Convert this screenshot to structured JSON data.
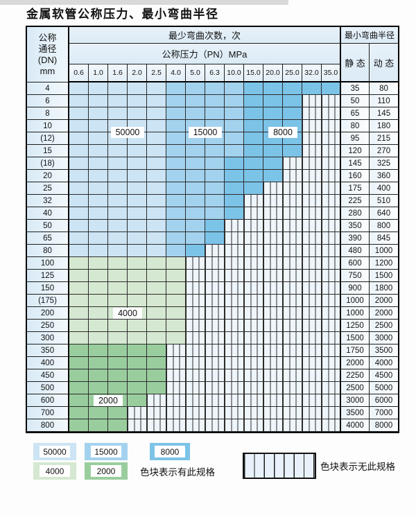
{
  "title": "金属软管公称压力、最小弯曲半径",
  "header": {
    "dn_lines": [
      "公称",
      "通径",
      "(DN)",
      "mm"
    ],
    "bend_cycles": "最少弯曲次数，次",
    "pressure_title": "公称压力（PN）MPa",
    "pressures": [
      "0.6",
      "1.0",
      "1.6",
      "2.0",
      "2.5",
      "4.0",
      "5.0",
      "6.3",
      "10.0",
      "15.0",
      "20.0",
      "25.0",
      "32.0",
      "35.0"
    ],
    "min_radius": "最小弯曲半径",
    "static_label": "静 态",
    "dynamic_label": "动 态"
  },
  "colors": {
    "L": "#cce4f4",
    "M": "#a3d2ee",
    "D": "#7cc3e8",
    "G": "#d5e8d1",
    "E": "#9acd9e",
    "hatch_bg": "#eef5fb"
  },
  "zone_labels": [
    {
      "text": "50000",
      "col_start": 2,
      "col_span": 2,
      "row_start": 3,
      "row_span": 2
    },
    {
      "text": "15000",
      "col_start": 6,
      "col_span": 2,
      "row_start": 3,
      "row_span": 2
    },
    {
      "text": "8000",
      "col_start": 10,
      "col_span": 2,
      "row_start": 3,
      "row_span": 2
    },
    {
      "text": "4000",
      "col_start": 2,
      "col_span": 2,
      "row_start": 18,
      "row_span": 1
    },
    {
      "text": "2000",
      "col_start": 1,
      "col_span": 2,
      "row_start": 25,
      "row_span": 1
    }
  ],
  "rows": [
    {
      "dn": "4",
      "cells": "LLLLLMMMMDDDDD",
      "static": "35",
      "dynamic": "80"
    },
    {
      "dn": "6",
      "cells": "LLLLLMMMMDDDXX",
      "static": "50",
      "dynamic": "110"
    },
    {
      "dn": "8",
      "cells": "LLLLLMMMMDDDXX",
      "static": "65",
      "dynamic": "145"
    },
    {
      "dn": "10",
      "cells": "LLLLLMMMMDDDXX",
      "static": "80",
      "dynamic": "180"
    },
    {
      "dn": "(12)",
      "cells": "LLLLLMMMMDDDXX",
      "static": "95",
      "dynamic": "215"
    },
    {
      "dn": "15",
      "cells": "LLLLLMMMMDDDXX",
      "static": "120",
      "dynamic": "270"
    },
    {
      "dn": "(18)",
      "cells": "LLLLLMMMDDDXXX",
      "static": "145",
      "dynamic": "325"
    },
    {
      "dn": "20",
      "cells": "LLLLLMMMDDDXXX",
      "static": "160",
      "dynamic": "360"
    },
    {
      "dn": "25",
      "cells": "LLLLLMMMDDXXXX",
      "static": "175",
      "dynamic": "400"
    },
    {
      "dn": "32",
      "cells": "LLLLLMMMDXXXXX",
      "static": "225",
      "dynamic": "510"
    },
    {
      "dn": "40",
      "cells": "LLLLLMMMDXXXXX",
      "static": "280",
      "dynamic": "640"
    },
    {
      "dn": "50",
      "cells": "LLLLLMMDXXXXXX",
      "static": "350",
      "dynamic": "800"
    },
    {
      "dn": "65",
      "cells": "LLLLLMMDXXXXXX",
      "static": "390",
      "dynamic": "845"
    },
    {
      "dn": "80",
      "cells": "LLLLLMDXXXXXXX",
      "static": "480",
      "dynamic": "1000"
    },
    {
      "dn": "100",
      "cells": "GGGGGGXXXXXXXX",
      "static": "600",
      "dynamic": "1200"
    },
    {
      "dn": "125",
      "cells": "GGGGGGXXXXXXXX",
      "static": "750",
      "dynamic": "1500"
    },
    {
      "dn": "150",
      "cells": "GGGGGGXXXXXXXX",
      "static": "900",
      "dynamic": "1800"
    },
    {
      "dn": "(175)",
      "cells": "GGGGGGXXXXXXXX",
      "static": "1000",
      "dynamic": "2000"
    },
    {
      "dn": "200",
      "cells": "GGGGGGXXXXXXXX",
      "static": "1000",
      "dynamic": "2000"
    },
    {
      "dn": "250",
      "cells": "GGGGGGXXXXXXXX",
      "static": "1250",
      "dynamic": "2500"
    },
    {
      "dn": "300",
      "cells": "GGGGGGXXXXXXXX",
      "static": "1500",
      "dynamic": "3000"
    },
    {
      "dn": "350",
      "cells": "EEEEEXXXXXXXXX",
      "static": "1750",
      "dynamic": "3500"
    },
    {
      "dn": "400",
      "cells": "EEEEEXXXXXXXXX",
      "static": "2000",
      "dynamic": "4000"
    },
    {
      "dn": "450",
      "cells": "EEEEEXXXXXXXXX",
      "static": "2250",
      "dynamic": "4500"
    },
    {
      "dn": "500",
      "cells": "EEEEEXXXXXXXXX",
      "static": "2500",
      "dynamic": "5000"
    },
    {
      "dn": "600",
      "cells": "EEEEXXXXXXXXXX",
      "static": "3000",
      "dynamic": "6000"
    },
    {
      "dn": "700",
      "cells": "EEEXXXXXXXXXXX",
      "static": "3500",
      "dynamic": "7000"
    },
    {
      "dn": "800",
      "cells": "EEEXXXXXXXXXXX",
      "static": "4000",
      "dynamic": "8000"
    }
  ],
  "legend": {
    "items": [
      {
        "value": "50000",
        "key": "L",
        "row": 1
      },
      {
        "value": "15000",
        "key": "M",
        "row": 1
      },
      {
        "value": "8000",
        "key": "D",
        "row": 1
      },
      {
        "value": "4000",
        "key": "G",
        "row": 2
      },
      {
        "value": "2000",
        "key": "E",
        "row": 2
      }
    ],
    "has_spec_text": "色块表示有此规格",
    "no_spec_text": "色块表示无此规格"
  }
}
